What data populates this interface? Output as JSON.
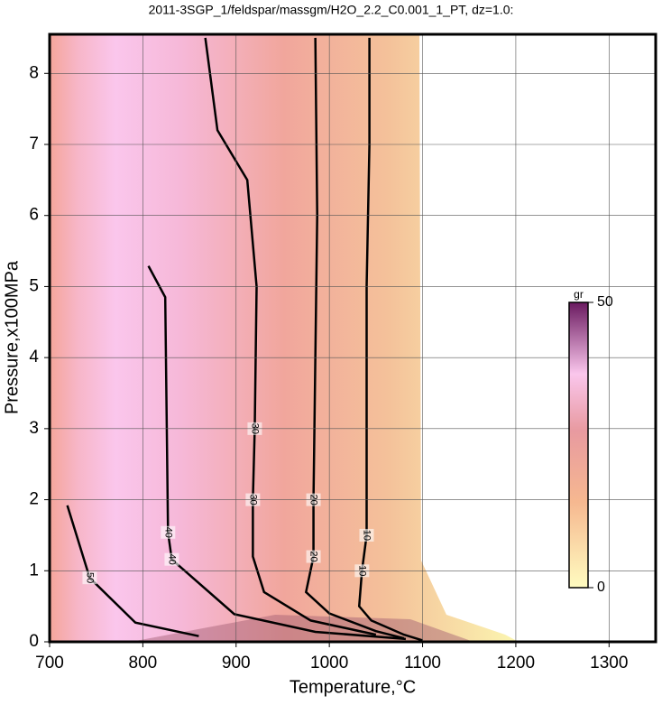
{
  "chart_data": {
    "type": "contour",
    "title": "2011-3SGP_1/feldspar/massgm/H2O_2.2_C0.001_1_PT, dz=1.0:",
    "x_label": "Temperature,°C",
    "y_label": "Pressure,x100MPa",
    "xlim": [
      700,
      1350
    ],
    "ylim": [
      0,
      8.55
    ],
    "xticks": [
      700,
      800,
      900,
      1000,
      1100,
      1200,
      1300
    ],
    "yticks": [
      0,
      1,
      2,
      3,
      4,
      5,
      6,
      7,
      8
    ],
    "grid": true,
    "contours": [
      {
        "level": 10,
        "x": [
          1043,
          1043,
          1040,
          1040,
          1040,
          1035,
          1032,
          1045,
          1080,
          1100
        ],
        "y": [
          8.5,
          7,
          5,
          3,
          1.5,
          1,
          0.5,
          0.3,
          0.1,
          0.02
        ]
      },
      {
        "level": 20,
        "x": [
          985,
          987,
          985,
          983,
          983,
          975,
          1000,
          1050,
          1080
        ],
        "y": [
          8.5,
          6,
          4,
          2,
          1.2,
          0.7,
          0.4,
          0.15,
          0.05
        ]
      },
      {
        "level": 30,
        "x": [
          867,
          880,
          912,
          922,
          920,
          918,
          918,
          930,
          980,
          1050
        ],
        "y": [
          8.5,
          7.2,
          6.5,
          5,
          3,
          2,
          1.2,
          0.7,
          0.3,
          0.1
        ]
      },
      {
        "level": 40,
        "x": [
          806,
          824,
          827,
          831,
          898,
          985,
          1082
        ],
        "y": [
          5.29,
          4.85,
          1.54,
          1.16,
          0.39,
          0.14,
          0.04
        ]
      },
      {
        "level": 50,
        "x": [
          719,
          743,
          792,
          860
        ],
        "y": [
          1.92,
          0.9,
          0.27,
          0.08
        ]
      }
    ],
    "colorbar": {
      "label": "gr",
      "zlim": [
        0,
        50
      ],
      "ticks": [
        0,
        50
      ]
    }
  }
}
